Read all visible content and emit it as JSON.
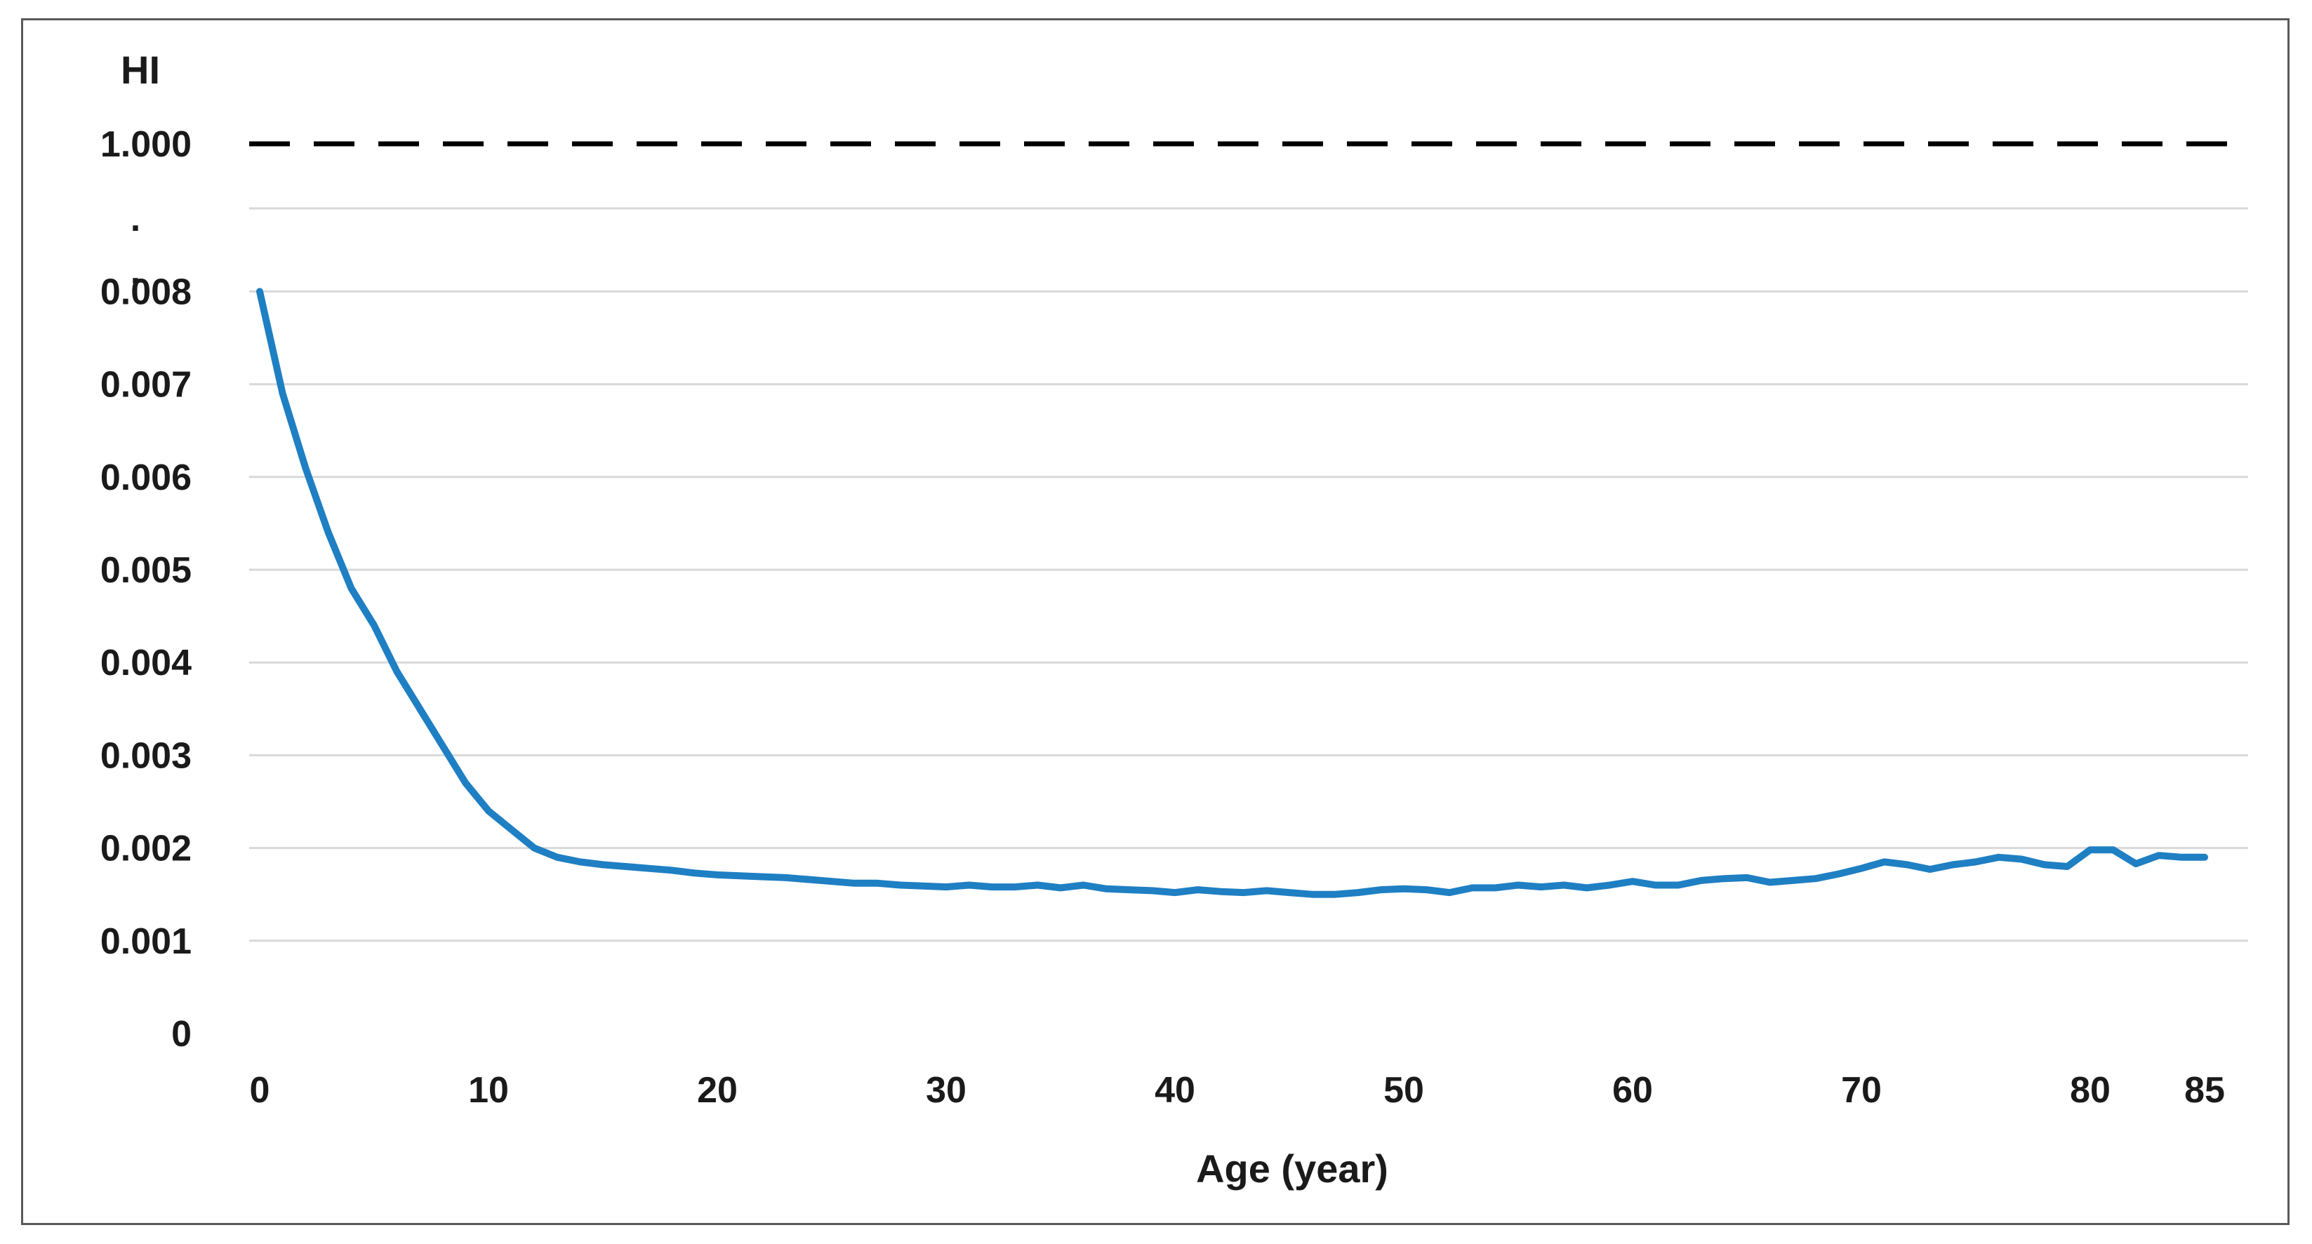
{
  "chart_data": {
    "type": "line",
    "title": "",
    "xlabel": "Age (year)",
    "ylabel": "HI",
    "xlim": [
      0,
      86
    ],
    "grid": true,
    "y_axis_break": true,
    "y_break_marks": [
      ".",
      "."
    ],
    "x_ticks": [
      {
        "value": 0,
        "label": "0"
      },
      {
        "value": 10,
        "label": "10"
      },
      {
        "value": 20,
        "label": "20"
      },
      {
        "value": 30,
        "label": "30"
      },
      {
        "value": 40,
        "label": "40"
      },
      {
        "value": 50,
        "label": "50"
      },
      {
        "value": 60,
        "label": "60"
      },
      {
        "value": 70,
        "label": "70"
      },
      {
        "value": 80,
        "label": "80"
      },
      {
        "value": 85,
        "label": "85"
      }
    ],
    "y_ticks": [
      {
        "value": 0,
        "label": "0"
      },
      {
        "value": 0.001,
        "label": "0.001"
      },
      {
        "value": 0.002,
        "label": "0.002"
      },
      {
        "value": 0.003,
        "label": "0.003"
      },
      {
        "value": 0.004,
        "label": "0.004"
      },
      {
        "value": 0.005,
        "label": "0.005"
      },
      {
        "value": 0.006,
        "label": "0.006"
      },
      {
        "value": 0.007,
        "label": "0.007"
      },
      {
        "value": 0.008,
        "label": "0.008"
      },
      {
        "value": 1.0,
        "label": "1.000"
      }
    ],
    "reference_line": {
      "value": 1.0,
      "style": "dashed",
      "color": "#000000"
    },
    "series": [
      {
        "color": "#1f7fc3",
        "x": [
          0,
          1,
          2,
          3,
          4,
          5,
          6,
          7,
          8,
          9,
          10,
          11,
          12,
          13,
          14,
          15,
          16,
          17,
          18,
          19,
          20,
          21,
          22,
          23,
          24,
          25,
          26,
          27,
          28,
          29,
          30,
          31,
          32,
          33,
          34,
          35,
          36,
          37,
          38,
          39,
          40,
          41,
          42,
          43,
          44,
          45,
          46,
          47,
          48,
          49,
          50,
          51,
          52,
          53,
          54,
          55,
          56,
          57,
          58,
          59,
          60,
          61,
          62,
          63,
          64,
          65,
          66,
          67,
          68,
          69,
          70,
          71,
          72,
          73,
          74,
          75,
          76,
          77,
          78,
          79,
          80,
          81,
          82,
          83,
          84,
          85
        ],
        "y": [
          0.008,
          0.0069,
          0.0061,
          0.0054,
          0.0048,
          0.0044,
          0.0039,
          0.0035,
          0.0031,
          0.0027,
          0.0024,
          0.0022,
          0.002,
          0.0019,
          0.00185,
          0.00182,
          0.0018,
          0.00178,
          0.00176,
          0.00173,
          0.00171,
          0.0017,
          0.00169,
          0.00168,
          0.00166,
          0.00164,
          0.00162,
          0.00162,
          0.0016,
          0.00159,
          0.00158,
          0.0016,
          0.00158,
          0.00158,
          0.0016,
          0.00157,
          0.0016,
          0.00156,
          0.00155,
          0.00154,
          0.00152,
          0.00155,
          0.00153,
          0.00152,
          0.00154,
          0.00152,
          0.0015,
          0.0015,
          0.00152,
          0.00155,
          0.00156,
          0.00155,
          0.00152,
          0.00157,
          0.00157,
          0.0016,
          0.00158,
          0.0016,
          0.00157,
          0.0016,
          0.00164,
          0.0016,
          0.0016,
          0.00165,
          0.00167,
          0.00168,
          0.00163,
          0.00165,
          0.00167,
          0.00172,
          0.00178,
          0.00185,
          0.00182,
          0.00177,
          0.00182,
          0.00185,
          0.0019,
          0.00188,
          0.00182,
          0.0018,
          0.00198,
          0.00198,
          0.00183,
          0.00192,
          0.0019,
          0.0019
        ]
      }
    ]
  }
}
